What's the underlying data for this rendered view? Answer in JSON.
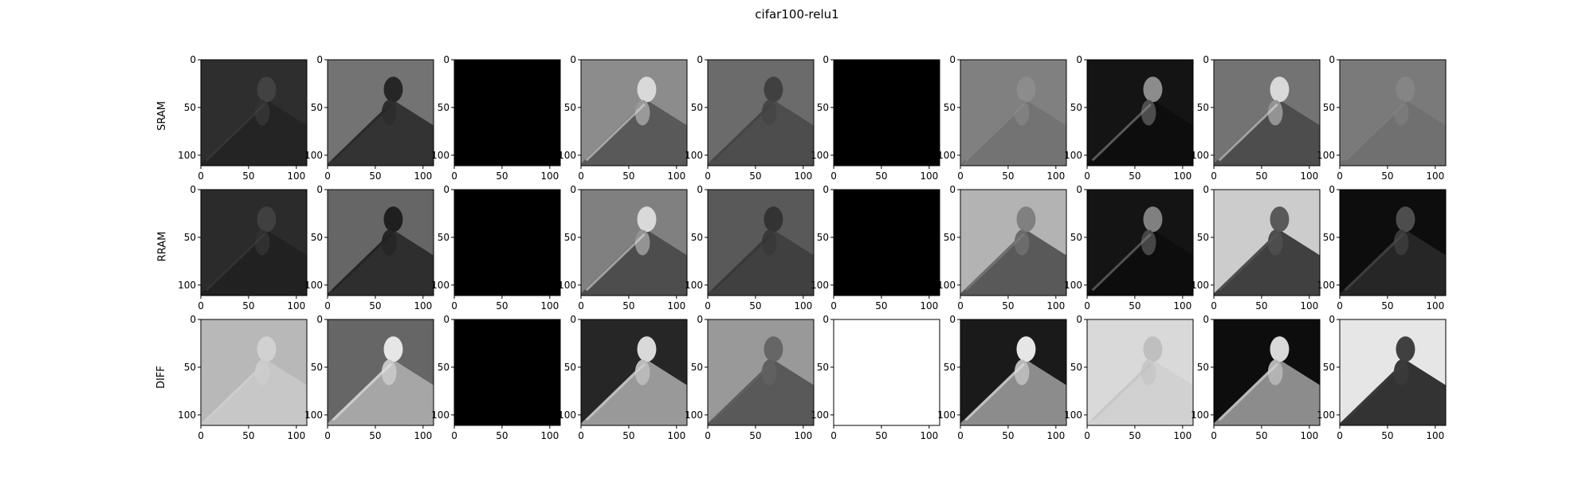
{
  "chart_data": {
    "type": "heatmap",
    "title": "cifar100-relu1",
    "rows": [
      "SRAM",
      "RRAM",
      "DIFF"
    ],
    "columns": 10,
    "xticks": [
      "0",
      "50",
      "100"
    ],
    "yticks": [
      "0",
      "50",
      "100"
    ],
    "xlim": [
      0,
      111
    ],
    "ylim": [
      111,
      0
    ],
    "colormap": "gray",
    "tiles": [
      [
        {
          "bg": 0.18,
          "obj": 0.26,
          "dark": 0.14,
          "contrast": 0.1
        },
        {
          "bg": 0.45,
          "obj": 0.15,
          "dark": 0.2,
          "contrast": 0.4
        },
        {
          "bg": 0.0,
          "obj": 0.0,
          "dark": 0.0,
          "contrast": 0.0
        },
        {
          "bg": 0.55,
          "obj": 0.85,
          "dark": 0.35,
          "contrast": 0.8
        },
        {
          "bg": 0.42,
          "obj": 0.25,
          "dark": 0.3,
          "contrast": 0.5
        },
        {
          "bg": 0.0,
          "obj": 0.0,
          "dark": 0.0,
          "contrast": 0.0
        },
        {
          "bg": 0.5,
          "obj": 0.55,
          "dark": 0.45,
          "contrast": 0.15
        },
        {
          "bg": 0.08,
          "obj": 0.55,
          "dark": 0.05,
          "contrast": 0.6
        },
        {
          "bg": 0.45,
          "obj": 0.85,
          "dark": 0.3,
          "contrast": 0.7
        },
        {
          "bg": 0.48,
          "obj": 0.52,
          "dark": 0.44,
          "contrast": 0.1
        }
      ],
      [
        {
          "bg": 0.17,
          "obj": 0.25,
          "dark": 0.13,
          "contrast": 0.1
        },
        {
          "bg": 0.4,
          "obj": 0.12,
          "dark": 0.18,
          "contrast": 0.4
        },
        {
          "bg": 0.0,
          "obj": 0.0,
          "dark": 0.0,
          "contrast": 0.0
        },
        {
          "bg": 0.5,
          "obj": 0.85,
          "dark": 0.3,
          "contrast": 0.8
        },
        {
          "bg": 0.35,
          "obj": 0.2,
          "dark": 0.25,
          "contrast": 0.5
        },
        {
          "bg": 0.0,
          "obj": 0.0,
          "dark": 0.0,
          "contrast": 0.0
        },
        {
          "bg": 0.7,
          "obj": 0.5,
          "dark": 0.35,
          "contrast": 0.6
        },
        {
          "bg": 0.08,
          "obj": 0.5,
          "dark": 0.05,
          "contrast": 0.6
        },
        {
          "bg": 0.8,
          "obj": 0.35,
          "dark": 0.25,
          "contrast": 0.8
        },
        {
          "bg": 0.05,
          "obj": 0.3,
          "dark": 0.15,
          "contrast": 0.5
        }
      ],
      [
        {
          "bg": 0.72,
          "obj": 0.82,
          "dark": 0.78,
          "contrast": 0.25
        },
        {
          "bg": 0.4,
          "obj": 0.9,
          "dark": 0.65,
          "contrast": 0.6
        },
        {
          "bg": 0.0,
          "obj": 0.0,
          "dark": 0.0,
          "contrast": 0.0
        },
        {
          "bg": 0.15,
          "obj": 0.85,
          "dark": 0.6,
          "contrast": 0.8
        },
        {
          "bg": 0.6,
          "obj": 0.4,
          "dark": 0.35,
          "contrast": 0.7
        },
        {
          "bg": 1.0,
          "obj": 1.0,
          "dark": 1.0,
          "contrast": 0.0
        },
        {
          "bg": 0.1,
          "obj": 0.9,
          "dark": 0.55,
          "contrast": 0.8
        },
        {
          "bg": 0.85,
          "obj": 0.75,
          "dark": 0.82,
          "contrast": 0.2
        },
        {
          "bg": 0.05,
          "obj": 0.85,
          "dark": 0.55,
          "contrast": 0.8
        },
        {
          "bg": 0.9,
          "obj": 0.25,
          "dark": 0.2,
          "contrast": 0.8
        }
      ]
    ]
  }
}
